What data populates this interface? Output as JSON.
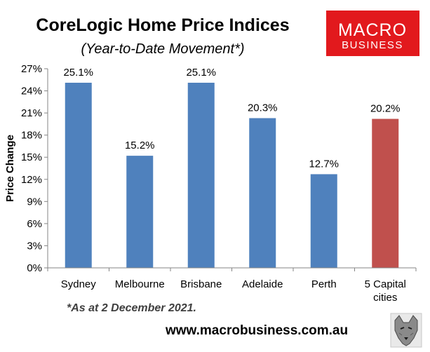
{
  "logo": {
    "line1": "MACRO",
    "line2": "BUSINESS",
    "background": "#e2191d"
  },
  "footer": {
    "note": "*As at 2 December 2021.",
    "url": "www.macrobusiness.com.au",
    "mascot_icon": "wolf-icon"
  },
  "chart_data": {
    "type": "bar",
    "title": "CoreLogic Home Price Indices",
    "subtitle": "(Year-to-Date Movement*)",
    "xlabel": "",
    "ylabel": "Price Change",
    "categories": [
      "Sydney",
      "Melbourne",
      "Brisbane",
      "Adelaide",
      "Perth",
      "5 Capital cities"
    ],
    "category_lines": [
      [
        "Sydney"
      ],
      [
        "Melbourne"
      ],
      [
        "Brisbane"
      ],
      [
        "Adelaide"
      ],
      [
        "Perth"
      ],
      [
        "5 Capital",
        "cities"
      ]
    ],
    "values": [
      25.1,
      15.2,
      25.1,
      20.3,
      12.7,
      20.2
    ],
    "data_labels": [
      "25.1%",
      "15.2%",
      "25.1%",
      "20.3%",
      "12.7%",
      "20.2%"
    ],
    "bar_colors": [
      "#4f81bd",
      "#4f81bd",
      "#4f81bd",
      "#4f81bd",
      "#4f81bd",
      "#c0504d"
    ],
    "ylim": [
      0,
      27
    ],
    "yticks": [
      0,
      3,
      6,
      9,
      12,
      15,
      18,
      21,
      24,
      27
    ],
    "ytick_labels": [
      "0%",
      "3%",
      "6%",
      "9%",
      "12%",
      "15%",
      "18%",
      "21%",
      "24%",
      "27%"
    ],
    "grid": false,
    "legend": "none"
  }
}
